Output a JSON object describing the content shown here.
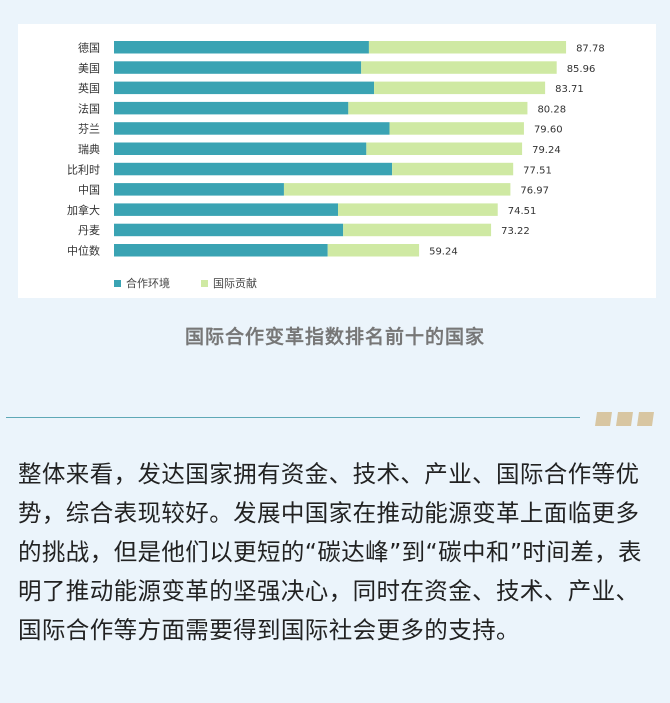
{
  "chart_data": {
    "type": "bar",
    "orientation": "horizontal",
    "stacked": true,
    "categories": [
      "德国",
      "美国",
      "英国",
      "法国",
      "芬兰",
      "瑞典",
      "比利时",
      "中国",
      "加拿大",
      "丹麦",
      "中位数"
    ],
    "series": [
      {
        "name": "合作环境",
        "color": "#3aa3b3",
        "values": [
          49.5,
          48.0,
          50.5,
          45.5,
          53.5,
          49.0,
          54.0,
          33.0,
          43.5,
          44.5,
          41.5
        ]
      },
      {
        "name": "国际贡献",
        "color": "#cfe9a3",
        "values": [
          38.28,
          37.96,
          33.21,
          34.78,
          26.1,
          30.24,
          23.51,
          43.97,
          31.01,
          28.72,
          17.74
        ]
      }
    ],
    "totals": [
      "87.78",
      "85.96",
      "83.71",
      "80.28",
      "79.60",
      "79.24",
      "77.51",
      "76.97",
      "74.51",
      "73.22",
      "59.24"
    ],
    "xlim": [
      0,
      100
    ],
    "legend_position": "bottom-left",
    "grid": false
  },
  "caption": "国际合作变革指数排名前十的国家",
  "body_text": "整体来看，发达国家拥有资金、技术、产业、国际合作等优势，综合表现较好。发展中国家在推动能源变革上面临更多的挑战，但是他们以更短的“碳达峰”到“碳中和”时间差，表明了推动能源变革的坚强决心，同时在资金、技术、产业、国际合作等方面需要得到国际社会更多的支持。"
}
